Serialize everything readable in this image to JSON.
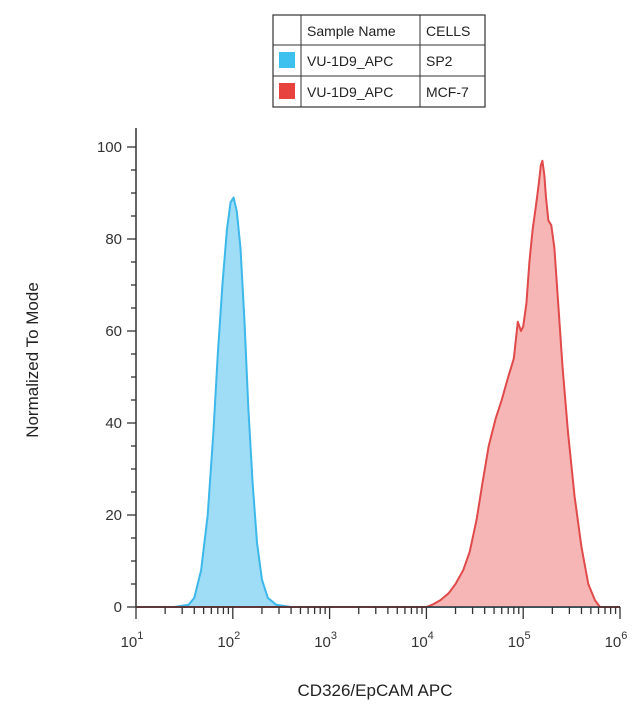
{
  "legend": {
    "headers": [
      "Sample Name",
      "CELLS"
    ],
    "rows": [
      {
        "sample": "VU-1D9_APC",
        "cells": "SP2",
        "color": "#3fc1f0"
      },
      {
        "sample": "VU-1D9_APC",
        "cells": "MCF-7",
        "color": "#e8423f"
      }
    ]
  },
  "chart_data": {
    "type": "area",
    "xlabel": "CD326/EpCAM APC",
    "ylabel": "Normalized To Mode",
    "x_scale": "log",
    "xlim": [
      10,
      1000000
    ],
    "ylim": [
      0,
      100
    ],
    "y_ticks": [
      0,
      20,
      40,
      60,
      80,
      100
    ],
    "x_ticks": [
      {
        "base": "10",
        "exp": "1",
        "value": 10
      },
      {
        "base": "10",
        "exp": "2",
        "value": 100
      },
      {
        "base": "10",
        "exp": "3",
        "value": 1000
      },
      {
        "base": "10",
        "exp": "4",
        "value": 10000
      },
      {
        "base": "10",
        "exp": "5",
        "value": 100000
      },
      {
        "base": "10",
        "exp": "6",
        "value": 1000000
      }
    ],
    "series": [
      {
        "cells": "SP2",
        "stroke": "#3cb8ea",
        "fill": "#8ed6f4",
        "points": [
          [
            10,
            0
          ],
          [
            25,
            0
          ],
          [
            35,
            0.5
          ],
          [
            40,
            2
          ],
          [
            47,
            8
          ],
          [
            55,
            20
          ],
          [
            63,
            38
          ],
          [
            70,
            55
          ],
          [
            78,
            70
          ],
          [
            87,
            82
          ],
          [
            95,
            88
          ],
          [
            102,
            89
          ],
          [
            110,
            86
          ],
          [
            120,
            78
          ],
          [
            132,
            62
          ],
          [
            145,
            43
          ],
          [
            160,
            27
          ],
          [
            178,
            14
          ],
          [
            200,
            6
          ],
          [
            230,
            2
          ],
          [
            280,
            0.5
          ],
          [
            400,
            0
          ],
          [
            1000000,
            0
          ]
        ]
      },
      {
        "cells": "MCF-7",
        "stroke": "#e04a4a",
        "fill": "#f4a9a9",
        "points": [
          [
            10,
            0
          ],
          [
            10000,
            0
          ],
          [
            11500,
            0.5
          ],
          [
            14000,
            1.5
          ],
          [
            17000,
            3
          ],
          [
            20000,
            5
          ],
          [
            24000,
            8
          ],
          [
            28000,
            12
          ],
          [
            33000,
            19
          ],
          [
            38000,
            27
          ],
          [
            44000,
            35
          ],
          [
            52000,
            41
          ],
          [
            60000,
            45
          ],
          [
            70000,
            50
          ],
          [
            80000,
            54
          ],
          [
            88000,
            62
          ],
          [
            95000,
            60
          ],
          [
            100000,
            61
          ],
          [
            108000,
            66
          ],
          [
            116000,
            75
          ],
          [
            125000,
            82
          ],
          [
            135000,
            87
          ],
          [
            145000,
            92
          ],
          [
            152000,
            96
          ],
          [
            158000,
            97
          ],
          [
            165000,
            94
          ],
          [
            172000,
            89
          ],
          [
            182000,
            84
          ],
          [
            195000,
            83
          ],
          [
            210000,
            78
          ],
          [
            230000,
            66
          ],
          [
            255000,
            52
          ],
          [
            290000,
            38
          ],
          [
            340000,
            24
          ],
          [
            400000,
            13
          ],
          [
            470000,
            5
          ],
          [
            550000,
            1.5
          ],
          [
            620000,
            0
          ],
          [
            1000000,
            0
          ]
        ]
      }
    ]
  }
}
